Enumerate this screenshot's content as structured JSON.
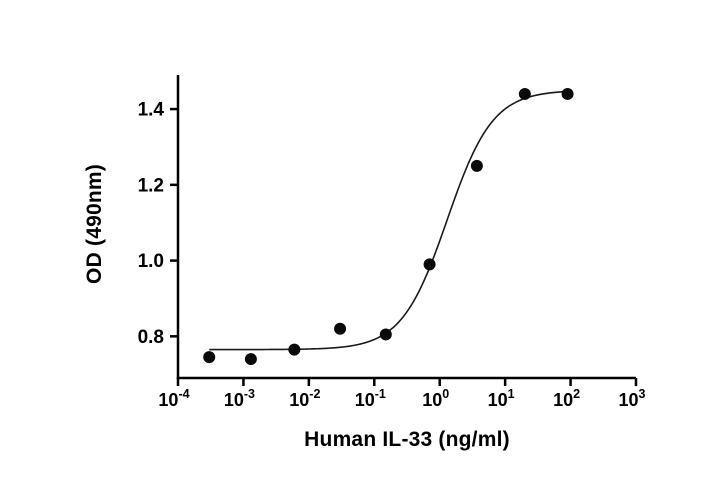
{
  "page": {
    "background": "#ffffff"
  },
  "chart_data": {
    "type": "scatter",
    "title": "",
    "xlabel": "Human IL-33 (ng/ml)",
    "ylabel": "OD (490nm)",
    "xscale": "log",
    "xlim": [
      0.0001,
      1000
    ],
    "ylim": [
      0.69,
      1.49
    ],
    "xtick_exponents": [
      -4,
      -3,
      -2,
      -1,
      0,
      1,
      2,
      3
    ],
    "yticks": [
      0.8,
      1.0,
      1.2,
      1.4
    ],
    "points": {
      "x": [
        0.0003,
        0.0013,
        0.006,
        0.03,
        0.15,
        0.7,
        3.7,
        20,
        90
      ],
      "y": [
        0.745,
        0.74,
        0.765,
        0.82,
        0.805,
        0.99,
        1.25,
        1.44,
        1.44
      ]
    },
    "fit_curve": {
      "model": "4pl",
      "bottom": 0.765,
      "top": 1.45,
      "ec50": 1.3,
      "hill": 1.25,
      "x_start": 0.0003,
      "x_end": 90
    },
    "grid": false,
    "legend": null,
    "colors": {
      "axis": "#000000",
      "marker": "#0a0a0a",
      "curve": "#1a1a1a"
    }
  }
}
